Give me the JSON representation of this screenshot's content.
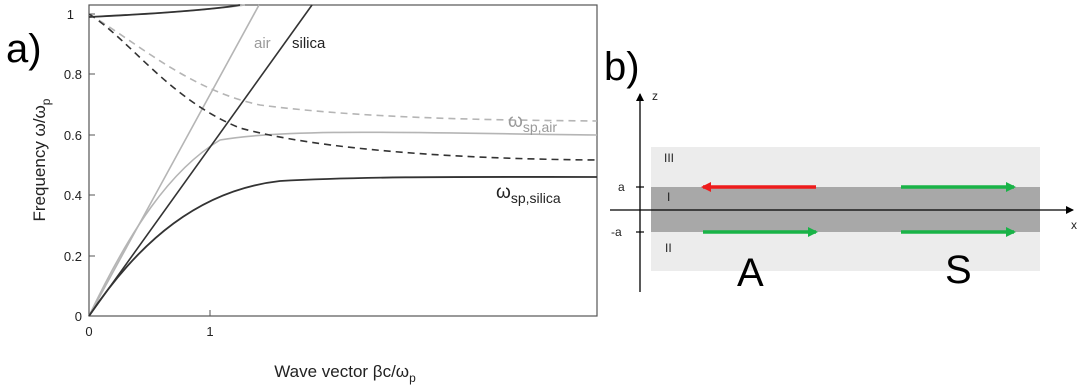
{
  "panel_a": {
    "label": "a)",
    "ylabel_main": "Frequency ω/ω",
    "ylabel_sub": "p",
    "xlabel_main": "Wave vector βc/ω",
    "xlabel_sub": "p",
    "y_ticks": [
      "0",
      "0.2",
      "0.4",
      "0.6",
      "0.8",
      "1"
    ],
    "x_ticks": [
      "0",
      "1"
    ],
    "label_air": "air",
    "label_silica": "silica",
    "label_sp_air_main": "ω",
    "label_sp_air_sub": "sp,air",
    "label_sp_silica_main": "ω",
    "label_sp_silica_sub": "sp,silica",
    "colors": {
      "air": "#b5b5b5",
      "silica": "#3a3a3a"
    }
  },
  "panel_b": {
    "label": "b)",
    "z_axis": "z",
    "x_axis": "x",
    "tick_a": "a",
    "tick_minus_a": "-a",
    "region_top": "III",
    "region_middle": "I",
    "region_bottom": "II",
    "mode_a": "A",
    "mode_s": "S",
    "colors": {
      "outer": "#ececec",
      "film": "#a8a8a8",
      "arrow_red": "#ee1c1c",
      "arrow_green": "#19b347"
    }
  }
}
